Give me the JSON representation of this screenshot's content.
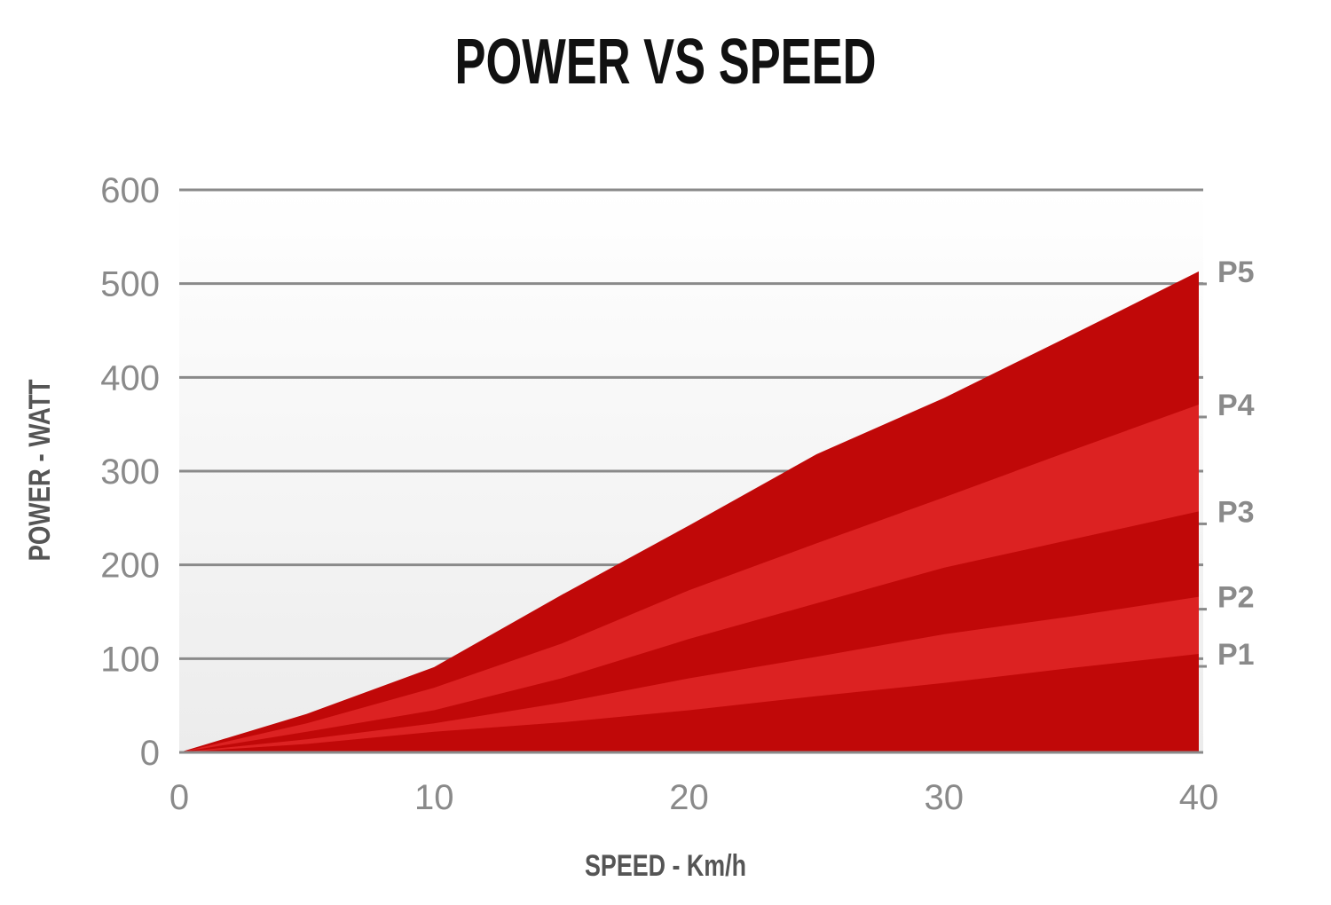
{
  "chart_data": {
    "type": "area",
    "title": "POWER VS SPEED",
    "x_label": "SPEED - Km/h",
    "y_label": "POWER - WATT",
    "x": [
      0,
      5,
      10,
      15,
      20,
      25,
      30,
      35,
      40
    ],
    "series": [
      {
        "name": "P1",
        "color": "#c00808",
        "values": [
          0,
          9,
          22,
          32,
          45,
          60,
          74,
          90,
          105
        ]
      },
      {
        "name": "P2",
        "color": "#dc2222",
        "values": [
          0,
          14,
          31,
          53,
          79,
          102,
          126,
          145,
          166
        ]
      },
      {
        "name": "P3",
        "color": "#c00808",
        "values": [
          0,
          22,
          45,
          79,
          121,
          159,
          197,
          227,
          257
        ]
      },
      {
        "name": "P4",
        "color": "#dc2222",
        "values": [
          0,
          31,
          69,
          116,
          173,
          223,
          272,
          322,
          371
        ]
      },
      {
        "name": "P5",
        "color": "#c00808",
        "values": [
          0,
          41,
          91,
          168,
          242,
          318,
          378,
          445,
          513
        ]
      }
    ],
    "xlim": [
      0,
      40
    ],
    "xticks": [
      0,
      10,
      20,
      30,
      40
    ],
    "ylim": [
      0,
      600
    ],
    "yticks": [
      0,
      100,
      200,
      300,
      400,
      500,
      600
    ],
    "grid": true
  }
}
